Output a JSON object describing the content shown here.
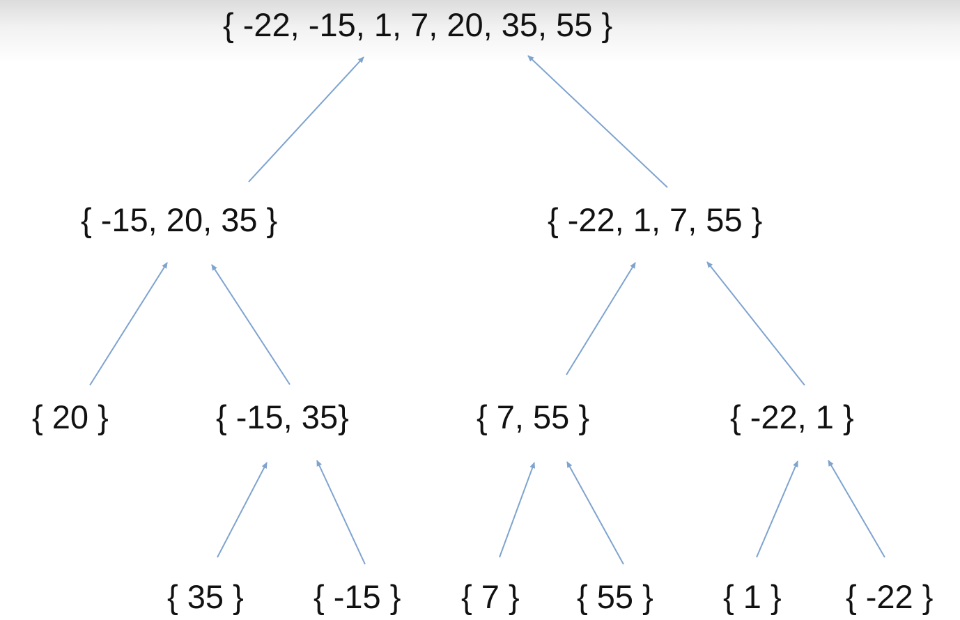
{
  "diagram": {
    "type": "merge-sort-tree",
    "arrow_color": "#7ea3cf",
    "nodes": {
      "root": "{ -22, -15, 1, 7, 20, 35, 55 }",
      "left": "{ -15, 20, 35 }",
      "right": "{ -22, 1, 7, 55 }",
      "left_left": "{ 20 }",
      "left_right": "{ -15, 35}",
      "right_left": "{ 7, 55 }",
      "right_right": "{ -22, 1 }",
      "left_right_left": "{ 35 }",
      "left_right_right": "{ -15 }",
      "right_left_left": "{ 7 }",
      "right_left_right": "{ 55 }",
      "right_right_left": "{ 1 }",
      "right_right_right": "{ -22 }"
    },
    "edges": [
      {
        "from": "left",
        "to": "root"
      },
      {
        "from": "right",
        "to": "root"
      },
      {
        "from": "left_left",
        "to": "left"
      },
      {
        "from": "left_right",
        "to": "left"
      },
      {
        "from": "right_left",
        "to": "right"
      },
      {
        "from": "right_right",
        "to": "right"
      },
      {
        "from": "left_right_left",
        "to": "left_right"
      },
      {
        "from": "left_right_right",
        "to": "left_right"
      },
      {
        "from": "right_left_left",
        "to": "right_left"
      },
      {
        "from": "right_left_right",
        "to": "right_left"
      },
      {
        "from": "right_right_left",
        "to": "right_right"
      },
      {
        "from": "right_right_right",
        "to": "right_right"
      }
    ]
  }
}
